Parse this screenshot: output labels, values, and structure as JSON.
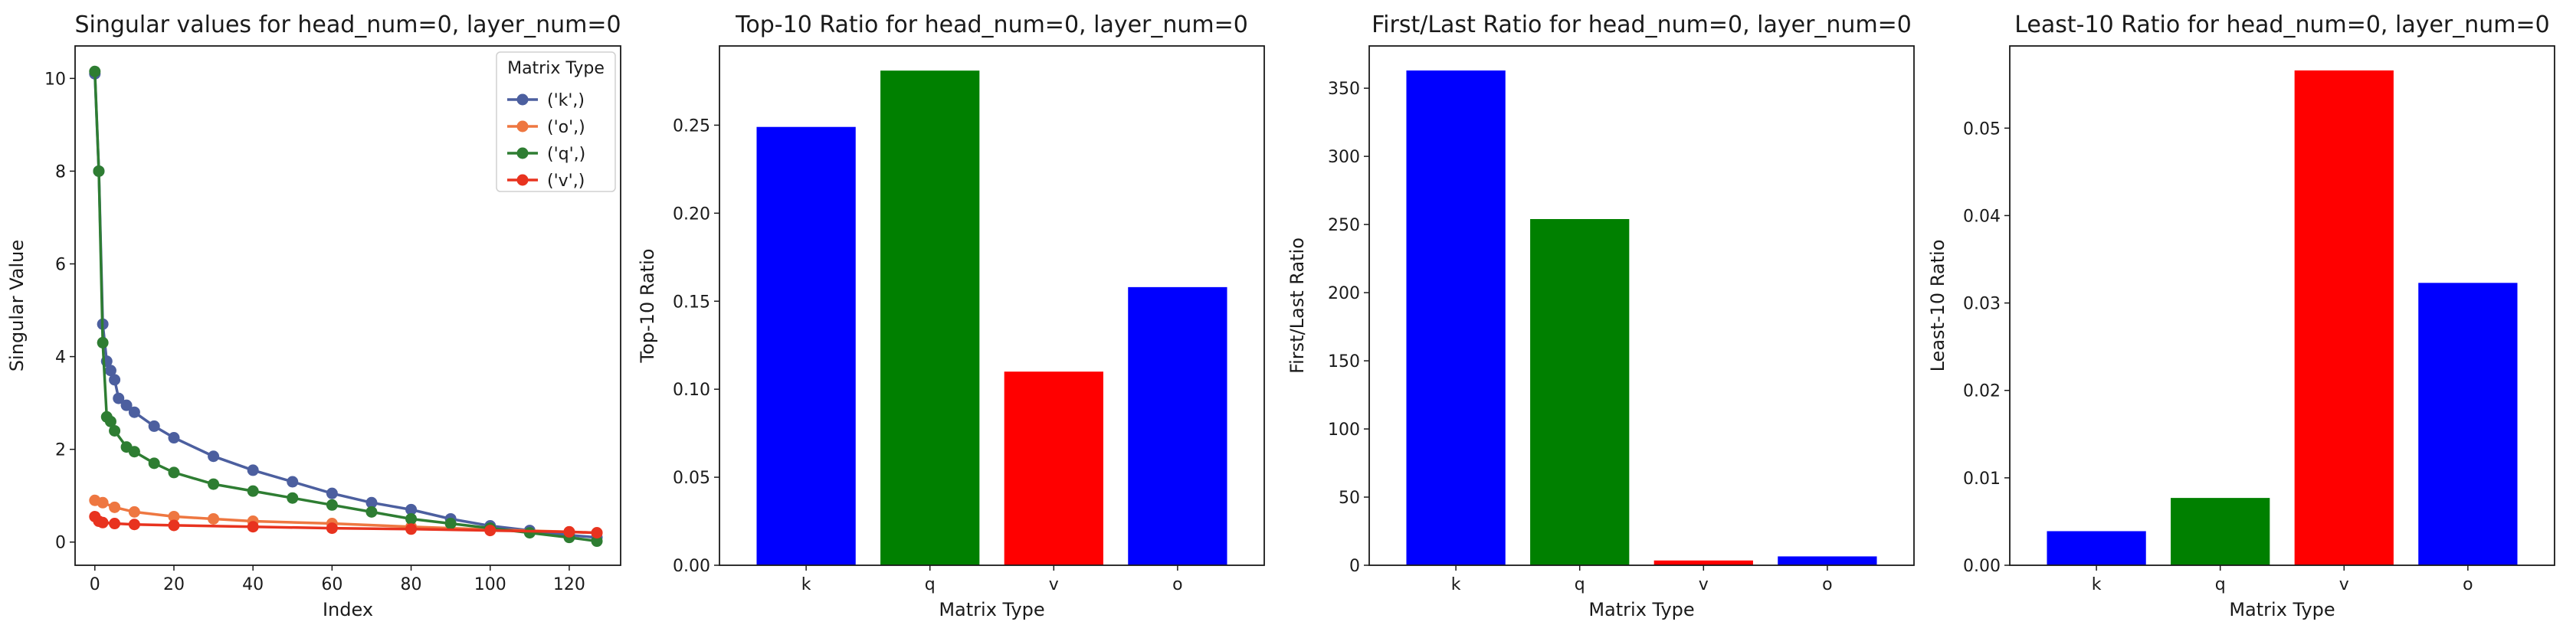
{
  "chart_data": [
    {
      "type": "line",
      "title": "Singular values for head_num=0, layer_num=0",
      "xlabel": "Index",
      "ylabel": "Singular Value",
      "xlim": [
        -5,
        133
      ],
      "ylim": [
        -0.5,
        10.7
      ],
      "xticks": [
        "0",
        "20",
        "40",
        "60",
        "80",
        "100",
        "120"
      ],
      "yticks": [
        "0",
        "2",
        "4",
        "6",
        "8",
        "10"
      ],
      "grid": false,
      "legend": {
        "title": "Matrix Type",
        "placement": "top-right"
      },
      "series": [
        {
          "name": "('k',)",
          "color": "#4c5f9f",
          "x": [
            0,
            1,
            2,
            3,
            4,
            5,
            6,
            8,
            10,
            15,
            20,
            30,
            40,
            50,
            60,
            70,
            80,
            90,
            100,
            110,
            120,
            127
          ],
          "y": [
            10.1,
            8.0,
            4.7,
            3.9,
            3.7,
            3.5,
            3.1,
            2.95,
            2.8,
            2.5,
            2.25,
            1.85,
            1.55,
            1.3,
            1.05,
            0.85,
            0.7,
            0.5,
            0.35,
            0.25,
            0.15,
            0.1
          ]
        },
        {
          "name": "('o',)",
          "color": "#ee7741",
          "x": [
            0,
            2,
            5,
            10,
            20,
            30,
            40,
            60,
            80,
            100,
            120,
            127
          ],
          "y": [
            0.9,
            0.85,
            0.75,
            0.65,
            0.55,
            0.5,
            0.45,
            0.4,
            0.33,
            0.27,
            0.22,
            0.2
          ]
        },
        {
          "name": "('q',)",
          "color": "#2e7d32",
          "x": [
            0,
            1,
            2,
            3,
            4,
            5,
            8,
            10,
            15,
            20,
            30,
            40,
            50,
            60,
            70,
            80,
            90,
            100,
            110,
            120,
            127
          ],
          "y": [
            10.15,
            8.0,
            4.3,
            2.7,
            2.6,
            2.4,
            2.05,
            1.95,
            1.7,
            1.5,
            1.25,
            1.1,
            0.95,
            0.8,
            0.65,
            0.5,
            0.4,
            0.3,
            0.2,
            0.1,
            0.02
          ]
        },
        {
          "name": "('v',)",
          "color": "#e8331f",
          "x": [
            0,
            1,
            2,
            5,
            10,
            20,
            40,
            60,
            80,
            100,
            120,
            127
          ],
          "y": [
            0.55,
            0.45,
            0.42,
            0.4,
            0.38,
            0.36,
            0.33,
            0.3,
            0.28,
            0.25,
            0.22,
            0.2
          ]
        }
      ]
    },
    {
      "type": "bar",
      "title": "Top-10 Ratio for head_num=0, layer_num=0",
      "xlabel": "Matrix Type",
      "ylabel": "Top-10 Ratio",
      "categories": [
        "k",
        "q",
        "v",
        "o"
      ],
      "values": [
        0.249,
        0.281,
        0.11,
        0.158
      ],
      "colors": [
        "#0000ff",
        "#008000",
        "#ff0000",
        "#0000ff"
      ],
      "ylim": [
        0,
        0.295
      ],
      "yticks": [
        "0.00",
        "0.05",
        "0.10",
        "0.15",
        "0.20",
        "0.25"
      ],
      "grid": false
    },
    {
      "type": "bar",
      "title": "First/Last Ratio for head_num=0, layer_num=0",
      "xlabel": "Matrix Type",
      "ylabel": "First/Last Ratio",
      "categories": [
        "k",
        "q",
        "v",
        "o"
      ],
      "values": [
        363,
        254,
        3.5,
        6.5
      ],
      "colors": [
        "#0000ff",
        "#008000",
        "#ff0000",
        "#0000ff"
      ],
      "ylim": [
        0,
        381
      ],
      "yticks": [
        "0",
        "50",
        "100",
        "150",
        "200",
        "250",
        "300",
        "350"
      ],
      "grid": false
    },
    {
      "type": "bar",
      "title": "Least-10 Ratio for head_num=0, layer_num=0",
      "xlabel": "Matrix Type",
      "ylabel": "Least-10 Ratio",
      "categories": [
        "k",
        "q",
        "v",
        "o"
      ],
      "values": [
        0.0039,
        0.0077,
        0.0566,
        0.0323
      ],
      "colors": [
        "#0000ff",
        "#008000",
        "#ff0000",
        "#0000ff"
      ],
      "ylim": [
        0,
        0.0594
      ],
      "yticks": [
        "0.00",
        "0.01",
        "0.02",
        "0.03",
        "0.04",
        "0.05"
      ],
      "grid": false
    }
  ]
}
